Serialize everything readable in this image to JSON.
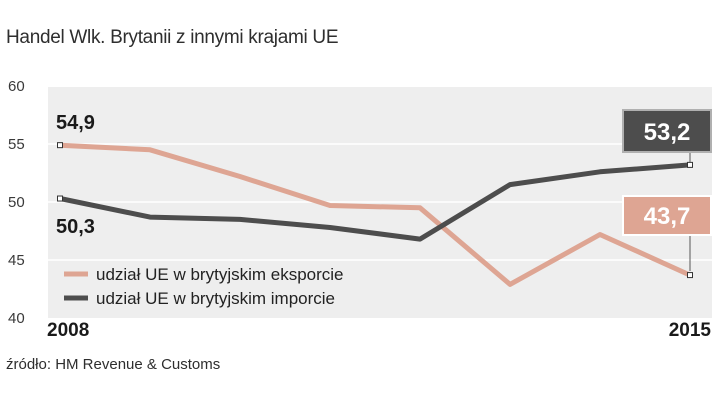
{
  "title": "Handel Wlk. Brytanii z innymi krajami UE",
  "source": "źródło: HM Revenue & Customs",
  "colors": {
    "export": "#dea593",
    "import": "#4d4d4d",
    "panel": "#eeeeee",
    "grid": "#ffffff"
  },
  "chart_data": {
    "type": "line",
    "title": "Handel Wlk. Brytanii z innymi krajami UE",
    "xlabel": "",
    "ylabel": "",
    "x": [
      2008,
      2009,
      2010,
      2011,
      2012,
      2013,
      2014,
      2015
    ],
    "x_tick_labels": [
      "2008",
      "2015"
    ],
    "ylim": [
      40,
      60
    ],
    "yticks": [
      40,
      45,
      50,
      55,
      60
    ],
    "grid": true,
    "legend_position": "bottom-left",
    "series": [
      {
        "name": "udział UE w brytyjskim eksporcie",
        "key": "export",
        "values": [
          54.9,
          54.5,
          52.2,
          49.7,
          49.5,
          42.9,
          47.2,
          43.7
        ]
      },
      {
        "name": "udział UE w brytyjskim imporcie",
        "key": "import",
        "values": [
          50.3,
          48.7,
          48.5,
          47.8,
          46.8,
          51.5,
          52.6,
          53.2
        ]
      }
    ],
    "annotations": {
      "export_start": "54,9",
      "import_start": "50,3",
      "export_end": "43,7",
      "import_end": "53,2"
    }
  }
}
